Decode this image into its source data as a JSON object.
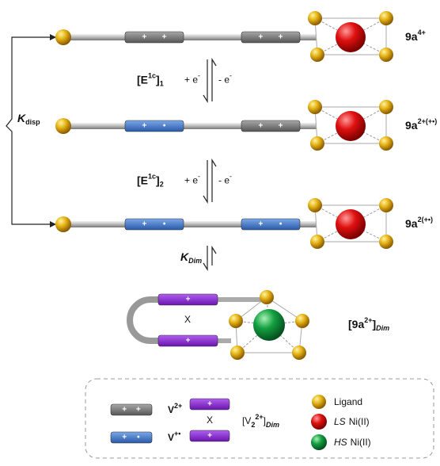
{
  "species": [
    {
      "name": "9a",
      "charge": "4+"
    },
    {
      "name": "9a",
      "charge": "2+(+•)"
    },
    {
      "name": "9a",
      "charge": "2(+•)"
    },
    {
      "open": "[9a",
      "charge": "2+",
      "close": "]",
      "subscript": "Dim"
    }
  ],
  "steps": [
    {
      "open": "[E",
      "superscript": "1c",
      "close": "]",
      "subscript": "1",
      "reduction": "+ e",
      "oxidation": "- e",
      "electron_charge": "-"
    },
    {
      "open": "[E",
      "superscript": "1c",
      "close": "]",
      "subscript": "2",
      "reduction": "+ e",
      "oxidation": "- e",
      "electron_charge": "-"
    }
  ],
  "disproportionation": {
    "symbol": "K",
    "subscript": "disp"
  },
  "dimerization": {
    "symbol": "K",
    "subscript": "Dim"
  },
  "rod_marks": {
    "plus": "+",
    "dot": "•",
    "cross": "X"
  },
  "legend": {
    "dication": {
      "label": "V",
      "charge": "2+"
    },
    "radical": {
      "label": "V",
      "charge": "+•"
    },
    "dimer": {
      "open": "[V",
      "count": "2",
      "charge": "2+",
      "close": "]",
      "subscript": "Dim"
    },
    "ligand": "Ligand",
    "low_spin": {
      "prefix": "LS",
      "text": "Ni(II)"
    },
    "high_spin": {
      "prefix": "HS",
      "text": "Ni(II)"
    }
  }
}
